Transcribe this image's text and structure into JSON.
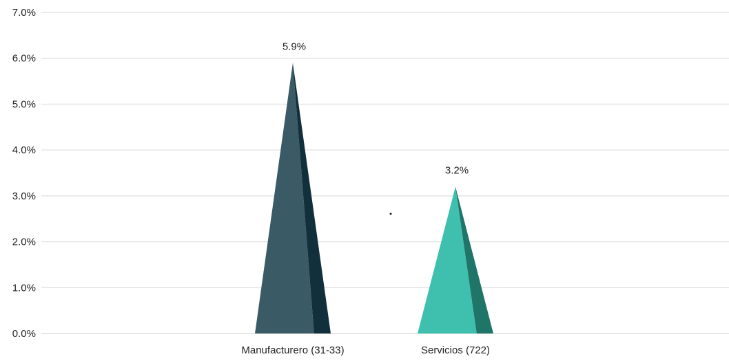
{
  "chart_data": {
    "type": "bar",
    "subtype": "pyramid",
    "categories": [
      "Manufacturero (31-33)",
      "Servicios (722)"
    ],
    "values": [
      5.9,
      3.2
    ],
    "data_labels": [
      "5.9%",
      "3.2%"
    ],
    "title": "",
    "xlabel": "",
    "ylabel": "",
    "ylim": [
      0,
      7
    ],
    "y_ticks": [
      0,
      1,
      2,
      3,
      4,
      5,
      6,
      7
    ],
    "y_tick_labels": [
      "0.0%",
      "1.0%",
      "2.0%",
      "3.0%",
      "4.0%",
      "5.0%",
      "6.0%",
      "7.0%"
    ],
    "grid": true,
    "legend": "none",
    "colors": {
      "Manufacturero (31-33)": {
        "face": "#3a5a66",
        "shade": "#12303b"
      },
      "Servicios (722)": {
        "face": "#3fbfae",
        "shade": "#1f7568"
      }
    }
  }
}
